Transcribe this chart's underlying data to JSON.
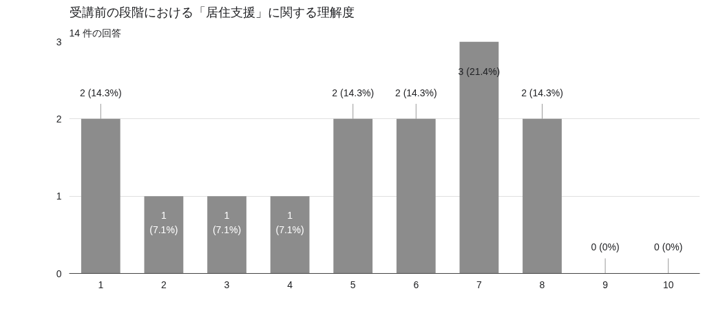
{
  "chart_data": {
    "type": "bar",
    "title": "受講前の段階における「居住支援」に関する理解度",
    "subtitle": "14 件の回答",
    "categories": [
      "1",
      "2",
      "3",
      "4",
      "5",
      "6",
      "7",
      "8",
      "9",
      "10"
    ],
    "values": [
      2,
      1,
      1,
      1,
      2,
      2,
      3,
      2,
      0,
      0
    ],
    "value_labels": [
      "2 (14.3%)",
      "1 (7.1%)",
      "1 (7.1%)",
      "1 (7.1%)",
      "2 (14.3%)",
      "2 (14.3%)",
      "3 (21.4%)",
      "2 (14.3%)",
      "0 (0%)",
      "0 (0%)"
    ],
    "color": "#8c8c8c",
    "ylim": [
      0,
      3
    ],
    "yticks": [
      0,
      1,
      2,
      3
    ],
    "grid": "y"
  }
}
